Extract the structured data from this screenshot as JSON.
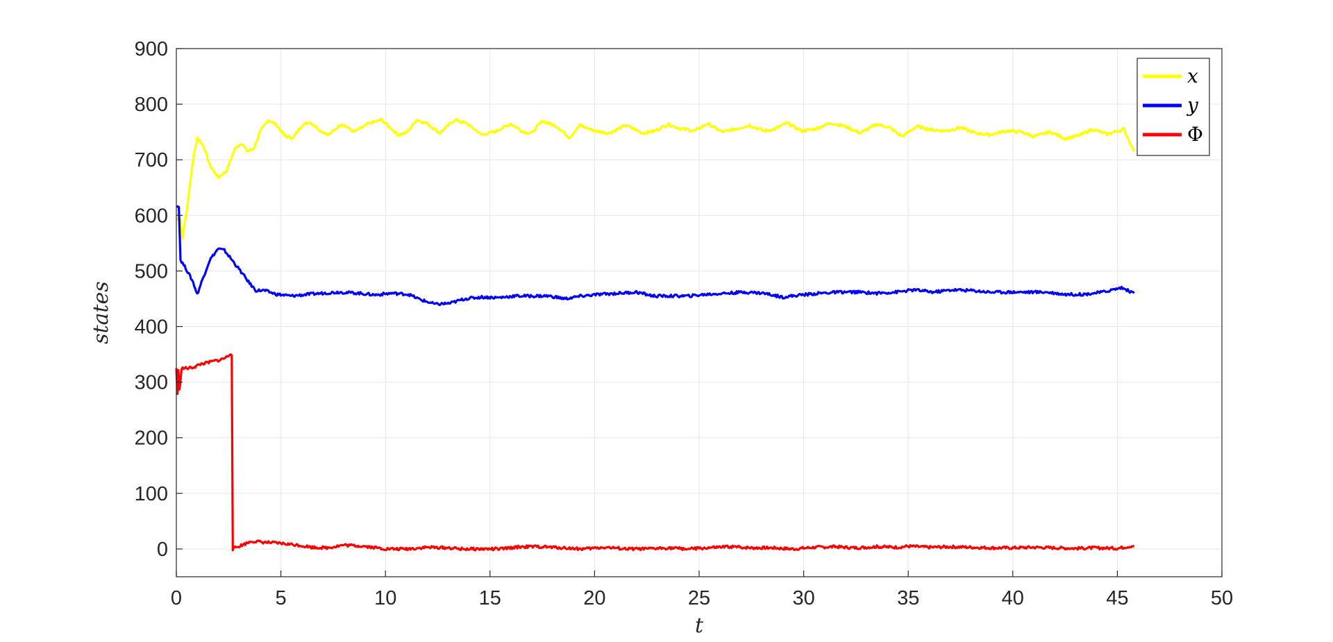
{
  "chart_data": {
    "type": "line",
    "xlabel": "t",
    "ylabel": "states",
    "xlim": [
      0,
      50
    ],
    "ylim": [
      -50,
      900
    ],
    "x_ticks": [
      "0",
      "5",
      "10",
      "15",
      "20",
      "25",
      "30",
      "35",
      "40",
      "45",
      "50"
    ],
    "y_ticks": [
      "0",
      "100",
      "200",
      "300",
      "400",
      "500",
      "600",
      "700",
      "800",
      "900"
    ],
    "grid": true,
    "legend_position": "top-right",
    "series": [
      {
        "name": "x",
        "color": "#ffff00",
        "points": [
          [
            0,
            590
          ],
          [
            0.15,
            600
          ],
          [
            0.3,
            560
          ],
          [
            0.5,
            610
          ],
          [
            0.8,
            700
          ],
          [
            1.0,
            740
          ],
          [
            1.3,
            725
          ],
          [
            1.6,
            690
          ],
          [
            2.0,
            668
          ],
          [
            2.4,
            680
          ],
          [
            2.8,
            720
          ],
          [
            3.1,
            730
          ],
          [
            3.4,
            715
          ],
          [
            3.7,
            720
          ],
          [
            4.0,
            750
          ],
          [
            4.4,
            772
          ],
          [
            4.8,
            762
          ],
          [
            5.2,
            742
          ],
          [
            5.6,
            740
          ],
          [
            6.0,
            762
          ],
          [
            6.4,
            768
          ],
          [
            6.9,
            752
          ],
          [
            7.3,
            745
          ],
          [
            7.9,
            765
          ],
          [
            8.5,
            750
          ],
          [
            9.2,
            765
          ],
          [
            9.8,
            772
          ],
          [
            10.6,
            745
          ],
          [
            11.0,
            748
          ],
          [
            11.5,
            772
          ],
          [
            12.0,
            765
          ],
          [
            12.6,
            748
          ],
          [
            13.3,
            772
          ],
          [
            13.9,
            765
          ],
          [
            14.6,
            745
          ],
          [
            15.2,
            750
          ],
          [
            16.0,
            765
          ],
          [
            16.6,
            750
          ],
          [
            17.0,
            748
          ],
          [
            17.5,
            770
          ],
          [
            18.2,
            760
          ],
          [
            18.8,
            740
          ],
          [
            19.3,
            762
          ],
          [
            20.0,
            752
          ],
          [
            20.7,
            748
          ],
          [
            21.5,
            762
          ],
          [
            22.3,
            748
          ],
          [
            22.9,
            752
          ],
          [
            23.5,
            764
          ],
          [
            24.1,
            756
          ],
          [
            24.8,
            752
          ],
          [
            25.4,
            765
          ],
          [
            26.1,
            750
          ],
          [
            26.7,
            755
          ],
          [
            27.4,
            762
          ],
          [
            28.1,
            752
          ],
          [
            28.6,
            755
          ],
          [
            29.2,
            766
          ],
          [
            29.9,
            752
          ],
          [
            30.5,
            755
          ],
          [
            31.3,
            766
          ],
          [
            32.0,
            760
          ],
          [
            32.7,
            748
          ],
          [
            33.5,
            764
          ],
          [
            34.1,
            758
          ],
          [
            34.7,
            742
          ],
          [
            35.4,
            760
          ],
          [
            36.1,
            754
          ],
          [
            36.8,
            752
          ],
          [
            37.5,
            758
          ],
          [
            38.2,
            748
          ],
          [
            38.9,
            745
          ],
          [
            39.7,
            752
          ],
          [
            40.4,
            750
          ],
          [
            41.0,
            742
          ],
          [
            41.8,
            750
          ],
          [
            42.5,
            738
          ],
          [
            43.2,
            744
          ],
          [
            43.8,
            755
          ],
          [
            44.5,
            746
          ],
          [
            45.3,
            755
          ],
          [
            45.8,
            715
          ]
        ]
      },
      {
        "name": "y",
        "color": "#0000ff",
        "points": [
          [
            0,
            618
          ],
          [
            0.12,
            615
          ],
          [
            0.2,
            520
          ],
          [
            0.45,
            505
          ],
          [
            0.8,
            480
          ],
          [
            1.0,
            458
          ],
          [
            1.3,
            490
          ],
          [
            1.6,
            520
          ],
          [
            2.0,
            540
          ],
          [
            2.3,
            537
          ],
          [
            2.7,
            518
          ],
          [
            3.1,
            498
          ],
          [
            3.5,
            478
          ],
          [
            3.8,
            465
          ],
          [
            4.2,
            465
          ],
          [
            4.8,
            458
          ],
          [
            5.5,
            455
          ],
          [
            6.3,
            458
          ],
          [
            7.0,
            460
          ],
          [
            7.8,
            462
          ],
          [
            8.7,
            460
          ],
          [
            9.5,
            457
          ],
          [
            10.3,
            460
          ],
          [
            11.1,
            458
          ],
          [
            11.7,
            448
          ],
          [
            12.4,
            440
          ],
          [
            13.1,
            442
          ],
          [
            13.8,
            450
          ],
          [
            14.6,
            453
          ],
          [
            15.4,
            452
          ],
          [
            16.2,
            455
          ],
          [
            17.0,
            455
          ],
          [
            17.8,
            455
          ],
          [
            18.6,
            450
          ],
          [
            19.4,
            455
          ],
          [
            20.3,
            458
          ],
          [
            21.2,
            460
          ],
          [
            22.0,
            462
          ],
          [
            22.8,
            455
          ],
          [
            23.6,
            455
          ],
          [
            24.5,
            455
          ],
          [
            25.4,
            458
          ],
          [
            26.3,
            460
          ],
          [
            27.2,
            462
          ],
          [
            28.1,
            460
          ],
          [
            29.0,
            453
          ],
          [
            29.9,
            457
          ],
          [
            30.8,
            460
          ],
          [
            31.7,
            462
          ],
          [
            32.6,
            462
          ],
          [
            33.5,
            460
          ],
          [
            34.4,
            462
          ],
          [
            35.3,
            466
          ],
          [
            36.2,
            462
          ],
          [
            37.1,
            466
          ],
          [
            38.0,
            465
          ],
          [
            38.9,
            462
          ],
          [
            39.8,
            462
          ],
          [
            40.7,
            462
          ],
          [
            41.6,
            462
          ],
          [
            42.5,
            458
          ],
          [
            43.4,
            458
          ],
          [
            44.3,
            462
          ],
          [
            45.2,
            470
          ],
          [
            45.8,
            460
          ]
        ]
      },
      {
        "name": "Φ",
        "color": "#ff0000",
        "points": [
          [
            0,
            325
          ],
          [
            0.05,
            280
          ],
          [
            0.1,
            320
          ],
          [
            0.15,
            285
          ],
          [
            0.25,
            325
          ],
          [
            0.6,
            325
          ],
          [
            0.9,
            328
          ],
          [
            1.2,
            333
          ],
          [
            1.5,
            335
          ],
          [
            1.8,
            338
          ],
          [
            2.1,
            340
          ],
          [
            2.4,
            345
          ],
          [
            2.6,
            352
          ],
          [
            2.65,
            348
          ],
          [
            2.7,
            0
          ],
          [
            2.8,
            2
          ],
          [
            3.2,
            8
          ],
          [
            3.6,
            14
          ],
          [
            4.2,
            12
          ],
          [
            5.0,
            10
          ],
          [
            5.8,
            7
          ],
          [
            6.5,
            3
          ],
          [
            7.2,
            2
          ],
          [
            8.0,
            7
          ],
          [
            9.0,
            5
          ],
          [
            10.0,
            0
          ],
          [
            11.0,
            0
          ],
          [
            12.0,
            3
          ],
          [
            13.0,
            2
          ],
          [
            13.6,
            0
          ],
          [
            14.5,
            0
          ],
          [
            15.5,
            0
          ],
          [
            16.5,
            4
          ],
          [
            17.5,
            4
          ],
          [
            18.5,
            2
          ],
          [
            19.5,
            0
          ],
          [
            20.5,
            3
          ],
          [
            21.5,
            0
          ],
          [
            22.5,
            0
          ],
          [
            23.5,
            2
          ],
          [
            24.5,
            0
          ],
          [
            25.5,
            2
          ],
          [
            26.5,
            4
          ],
          [
            27.5,
            2
          ],
          [
            28.5,
            2
          ],
          [
            29.5,
            0
          ],
          [
            30.5,
            3
          ],
          [
            31.5,
            4
          ],
          [
            32.5,
            2
          ],
          [
            33.5,
            4
          ],
          [
            34.5,
            3
          ],
          [
            35.0,
            5
          ],
          [
            36.0,
            3
          ],
          [
            37.0,
            4
          ],
          [
            38.0,
            3
          ],
          [
            39.0,
            2
          ],
          [
            40.0,
            2
          ],
          [
            41.0,
            3
          ],
          [
            42.0,
            2
          ],
          [
            43.0,
            1
          ],
          [
            44.0,
            2
          ],
          [
            45.0,
            1
          ],
          [
            45.8,
            6
          ]
        ]
      }
    ]
  }
}
